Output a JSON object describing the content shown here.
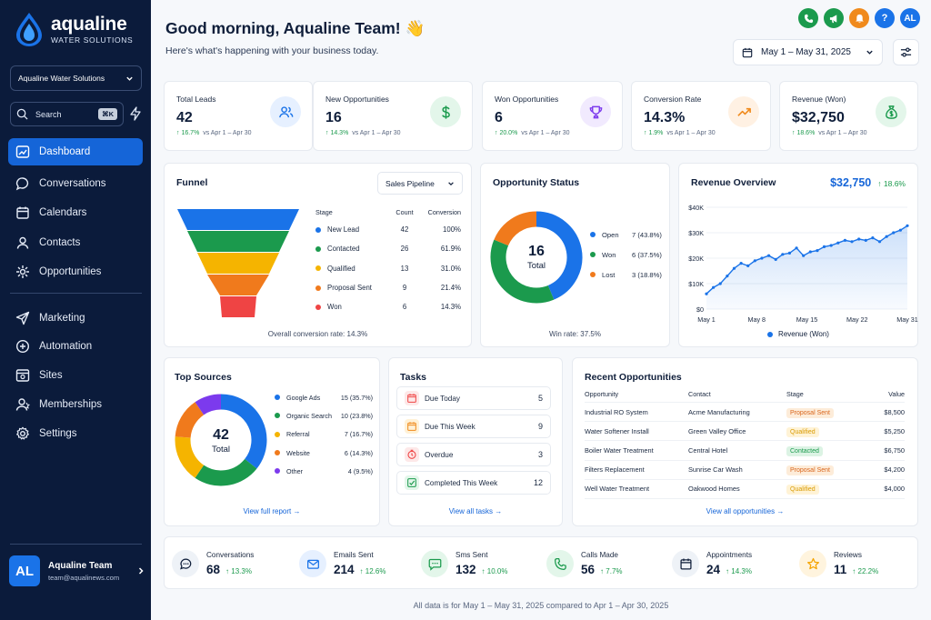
{
  "brand": {
    "name": "aqualine",
    "tagline": "WATER SOLUTIONS"
  },
  "sidebar": {
    "org_select": "Aqualine Water Solutions",
    "search_label": "Search",
    "search_shortcut": "⌘K",
    "nav": [
      {
        "label": "Dashboard",
        "icon": "dashboard-icon",
        "active": true
      },
      {
        "label": "Conversations",
        "icon": "chat-icon"
      },
      {
        "label": "Calendars",
        "icon": "calendar-icon"
      },
      {
        "label": "Contacts",
        "icon": "contact-icon"
      },
      {
        "label": "Opportunities",
        "icon": "opportunities-icon"
      },
      {
        "label": "Marketing",
        "icon": "send-icon"
      },
      {
        "label": "Automation",
        "icon": "automation-icon"
      },
      {
        "label": "Sites",
        "icon": "sites-icon"
      },
      {
        "label": "Memberships",
        "icon": "membership-icon"
      },
      {
        "label": "Settings",
        "icon": "gear-icon"
      }
    ],
    "user": {
      "initials": "AL",
      "name": "Aqualine Team",
      "email": "team@aqualinews.com"
    }
  },
  "header": {
    "greeting": "Good morning, Aqualine Team! 👋",
    "subtitle": "Here's what's happening with your business today.",
    "date_range": "May 1 – May 31, 2025",
    "icons": [
      {
        "name": "phone-icon",
        "color": "#1b9a4d"
      },
      {
        "name": "megaphone-icon",
        "color": "#1b9a4d"
      },
      {
        "name": "bell-icon",
        "color": "#f08a1c"
      },
      {
        "name": "help-icon",
        "color": "#1a73e8"
      }
    ],
    "avatar": "AL"
  },
  "kpis": [
    {
      "label": "Total Leads",
      "value": "42",
      "change": "16.7%",
      "compare": "vs Apr 1 – Apr 30",
      "icon": "users-icon",
      "bg": "#e6f0ff",
      "fg": "#1a73e8"
    },
    {
      "label": "New Opportunities",
      "value": "16",
      "change": "14.3%",
      "compare": "vs Apr 1 – Apr 30",
      "icon": "dollar-icon",
      "bg": "#e3f6ea",
      "fg": "#1b9a4d"
    },
    {
      "label": "Won Opportunities",
      "value": "6",
      "change": "20.0%",
      "compare": "vs Apr 1 – Apr 30",
      "icon": "trophy-icon",
      "bg": "#f1eafe",
      "fg": "#7c3aed"
    },
    {
      "label": "Conversion Rate",
      "value": "14.3%",
      "change": "1.9%",
      "compare": "vs Apr 1 – Apr 30",
      "icon": "trend-up-icon",
      "bg": "#fff1e3",
      "fg": "#f08a1c"
    },
    {
      "label": "Revenue (Won)",
      "value": "$32,750",
      "change": "18.6%",
      "compare": "vs Apr 1 – Apr 30",
      "icon": "money-bag-icon",
      "bg": "#e3f6ea",
      "fg": "#1b9a4d"
    }
  ],
  "funnel": {
    "title": "Funnel",
    "select": "Sales Pipeline",
    "headers": [
      "Stage",
      "Count",
      "Conversion"
    ],
    "rows": [
      {
        "stage": "New Lead",
        "count": "42",
        "conv": "100%",
        "color": "#1a73e8"
      },
      {
        "stage": "Contacted",
        "count": "26",
        "conv": "61.9%",
        "color": "#1b9a4d"
      },
      {
        "stage": "Qualified",
        "count": "13",
        "conv": "31.0%",
        "color": "#f5b400"
      },
      {
        "stage": "Proposal Sent",
        "count": "9",
        "conv": "21.4%",
        "color": "#f07a1c"
      },
      {
        "stage": "Won",
        "count": "6",
        "conv": "14.3%",
        "color": "#ef4444"
      }
    ],
    "note": "Overall conversion rate: 14.3%"
  },
  "opportunity_status": {
    "title": "Opportunity Status",
    "total": "16",
    "total_label": "Total",
    "items": [
      {
        "label": "Open",
        "value": "7 (43.8%)",
        "count": 7,
        "color": "#1a73e8"
      },
      {
        "label": "Won",
        "value": "6 (37.5%)",
        "count": 6,
        "color": "#1b9a4d"
      },
      {
        "label": "Lost",
        "value": "3 (18.8%)",
        "count": 3,
        "color": "#f07a1c"
      }
    ],
    "note": "Win rate: 37.5%"
  },
  "revenue": {
    "title": "Revenue Overview",
    "value": "$32,750",
    "change": "18.6%",
    "legend": "Revenue (Won)"
  },
  "chart_data": {
    "type": "area",
    "x_ticks": [
      "May 1",
      "May 8",
      "May 15",
      "May 22",
      "May 31"
    ],
    "y_ticks": [
      "$0",
      "$10K",
      "$20K",
      "$30K",
      "$40K"
    ],
    "ylim": [
      0,
      40000
    ],
    "series": [
      {
        "name": "Revenue (Won)",
        "values": [
          6000,
          8500,
          10000,
          13000,
          16000,
          18000,
          17000,
          19000,
          20000,
          21000,
          19500,
          21500,
          22000,
          24000,
          21000,
          22500,
          23000,
          24500,
          25000,
          26000,
          27000,
          26500,
          27500,
          27000,
          28000,
          26500,
          28500,
          30000,
          31000,
          32750
        ]
      }
    ]
  },
  "sources": {
    "title": "Top Sources",
    "total": "42",
    "total_label": "Total",
    "items": [
      {
        "label": "Google Ads",
        "value": "15 (35.7%)",
        "count": 15,
        "color": "#1a73e8"
      },
      {
        "label": "Organic Search",
        "value": "10 (23.8%)",
        "count": 10,
        "color": "#1b9a4d"
      },
      {
        "label": "Referral",
        "value": "7 (16.7%)",
        "count": 7,
        "color": "#f5b400"
      },
      {
        "label": "Website",
        "value": "6 (14.3%)",
        "count": 6,
        "color": "#f07a1c"
      },
      {
        "label": "Other",
        "value": "4 (9.5%)",
        "count": 4,
        "color": "#7c3aed"
      }
    ],
    "link": "View full report →"
  },
  "tasks": {
    "title": "Tasks",
    "items": [
      {
        "label": "Due Today",
        "count": "5",
        "icon": "calendar-icon",
        "bg": "#fde8e8",
        "fg": "#ef4444"
      },
      {
        "label": "Due This Week",
        "count": "9",
        "icon": "calendar-icon",
        "bg": "#fff1d6",
        "fg": "#f08a1c"
      },
      {
        "label": "Overdue",
        "count": "3",
        "icon": "clock-icon",
        "bg": "#fde8e8",
        "fg": "#ef4444"
      },
      {
        "label": "Completed This Week",
        "count": "12",
        "icon": "check-icon",
        "bg": "#e3f6ea",
        "fg": "#1b9a4d"
      }
    ],
    "link": "View all tasks →"
  },
  "recent": {
    "title": "Recent Opportunities",
    "headers": [
      "Opportunity",
      "Contact",
      "Stage",
      "Value"
    ],
    "rows": [
      {
        "opp": "Industrial RO System",
        "contact": "Acme Manufacturing",
        "stage": "Proposal Sent",
        "value": "$8,500",
        "bg": "#fdecd9",
        "fg": "#d9661c"
      },
      {
        "opp": "Water Softener Install",
        "contact": "Green Valley Office",
        "stage": "Qualified",
        "value": "$5,250",
        "bg": "#fff3d6",
        "fg": "#d99a00"
      },
      {
        "opp": "Boiler Water Treatment",
        "contact": "Central Hotel",
        "stage": "Contacted",
        "value": "$6,750",
        "bg": "#dcf3e4",
        "fg": "#1b9a4d"
      },
      {
        "opp": "Filters Replacement",
        "contact": "Sunrise Car Wash",
        "stage": "Proposal Sent",
        "value": "$4,200",
        "bg": "#fdecd9",
        "fg": "#d9661c"
      },
      {
        "opp": "Well Water Treatment",
        "contact": "Oakwood Homes",
        "stage": "Qualified",
        "value": "$4,000",
        "bg": "#fff3d6",
        "fg": "#d99a00"
      }
    ],
    "link": "View all opportunities →"
  },
  "stats": [
    {
      "label": "Conversations",
      "value": "68",
      "change": "13.3%",
      "icon": "chat-icon",
      "bg": "#eef2f7",
      "fg": "#0f1e3a"
    },
    {
      "label": "Emails Sent",
      "value": "214",
      "change": "12.6%",
      "icon": "mail-icon",
      "bg": "#e6f0ff",
      "fg": "#1a73e8"
    },
    {
      "label": "Sms Sent",
      "value": "132",
      "change": "10.0%",
      "icon": "sms-icon",
      "bg": "#e3f6ea",
      "fg": "#1b9a4d"
    },
    {
      "label": "Calls Made",
      "value": "56",
      "change": "7.7%",
      "icon": "phone-icon",
      "bg": "#e3f6ea",
      "fg": "#1b9a4d"
    },
    {
      "label": "Appointments",
      "value": "24",
      "change": "14.3%",
      "icon": "calendar-icon",
      "bg": "#eef2f7",
      "fg": "#0f1e3a"
    },
    {
      "label": "Reviews",
      "value": "11",
      "change": "22.2%",
      "icon": "star-icon",
      "bg": "#fff4de",
      "fg": "#f5a400"
    }
  ],
  "footer": "All data is for May 1 – May 31, 2025 compared to Apr 1 – Apr 30, 2025"
}
